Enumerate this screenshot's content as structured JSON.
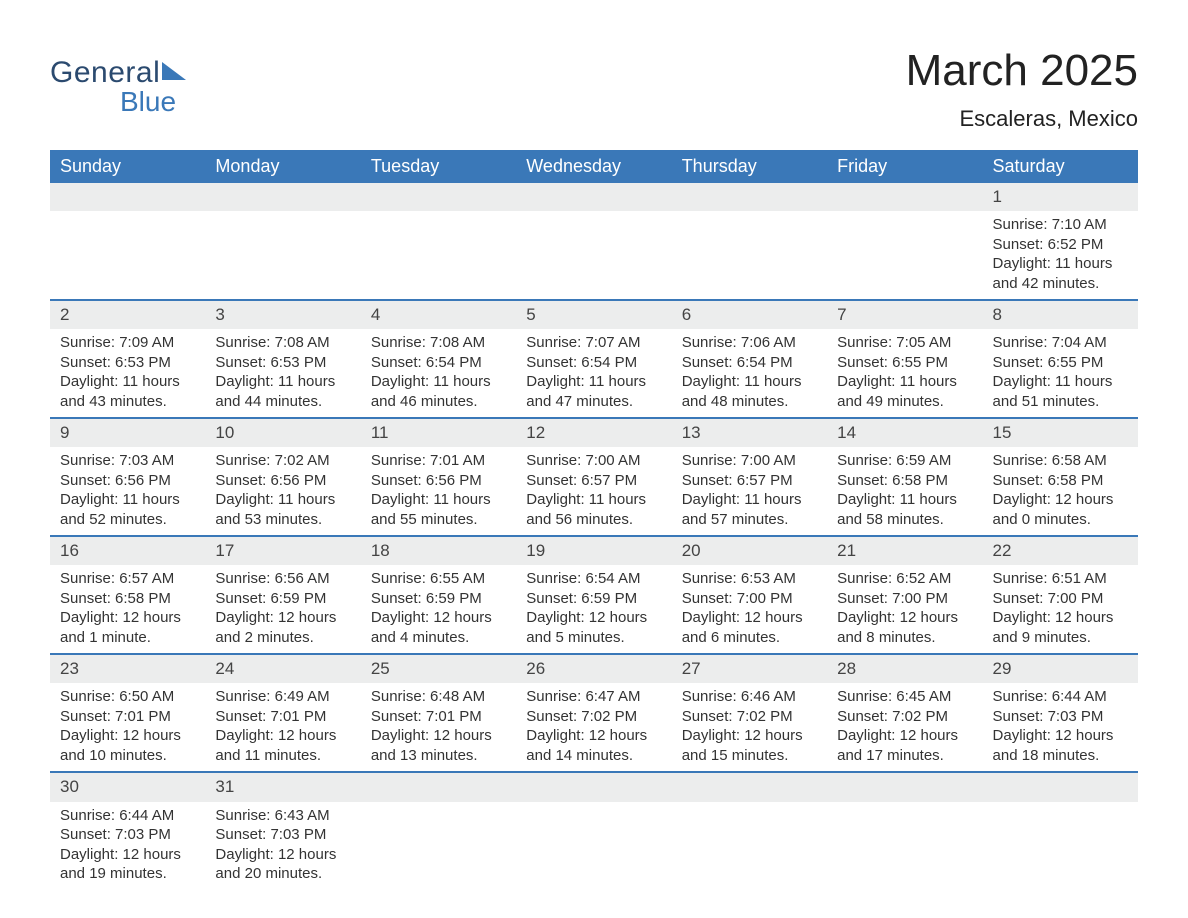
{
  "logo": {
    "general": "General",
    "blue": "Blue"
  },
  "header": {
    "title": "March 2025",
    "location": "Escaleras, Mexico"
  },
  "colors": {
    "header_bg": "#3a78b8",
    "header_text": "#ffffff",
    "daynum_bg": "#eceded",
    "row_border": "#3a78b8",
    "text": "#333333",
    "background": "#ffffff"
  },
  "day_headers": [
    "Sunday",
    "Monday",
    "Tuesday",
    "Wednesday",
    "Thursday",
    "Friday",
    "Saturday"
  ],
  "weeks": [
    [
      null,
      null,
      null,
      null,
      null,
      null,
      {
        "n": "1",
        "sr": "Sunrise: 7:10 AM",
        "ss": "Sunset: 6:52 PM",
        "d1": "Daylight: 11 hours",
        "d2": "and 42 minutes."
      }
    ],
    [
      {
        "n": "2",
        "sr": "Sunrise: 7:09 AM",
        "ss": "Sunset: 6:53 PM",
        "d1": "Daylight: 11 hours",
        "d2": "and 43 minutes."
      },
      {
        "n": "3",
        "sr": "Sunrise: 7:08 AM",
        "ss": "Sunset: 6:53 PM",
        "d1": "Daylight: 11 hours",
        "d2": "and 44 minutes."
      },
      {
        "n": "4",
        "sr": "Sunrise: 7:08 AM",
        "ss": "Sunset: 6:54 PM",
        "d1": "Daylight: 11 hours",
        "d2": "and 46 minutes."
      },
      {
        "n": "5",
        "sr": "Sunrise: 7:07 AM",
        "ss": "Sunset: 6:54 PM",
        "d1": "Daylight: 11 hours",
        "d2": "and 47 minutes."
      },
      {
        "n": "6",
        "sr": "Sunrise: 7:06 AM",
        "ss": "Sunset: 6:54 PM",
        "d1": "Daylight: 11 hours",
        "d2": "and 48 minutes."
      },
      {
        "n": "7",
        "sr": "Sunrise: 7:05 AM",
        "ss": "Sunset: 6:55 PM",
        "d1": "Daylight: 11 hours",
        "d2": "and 49 minutes."
      },
      {
        "n": "8",
        "sr": "Sunrise: 7:04 AM",
        "ss": "Sunset: 6:55 PM",
        "d1": "Daylight: 11 hours",
        "d2": "and 51 minutes."
      }
    ],
    [
      {
        "n": "9",
        "sr": "Sunrise: 7:03 AM",
        "ss": "Sunset: 6:56 PM",
        "d1": "Daylight: 11 hours",
        "d2": "and 52 minutes."
      },
      {
        "n": "10",
        "sr": "Sunrise: 7:02 AM",
        "ss": "Sunset: 6:56 PM",
        "d1": "Daylight: 11 hours",
        "d2": "and 53 minutes."
      },
      {
        "n": "11",
        "sr": "Sunrise: 7:01 AM",
        "ss": "Sunset: 6:56 PM",
        "d1": "Daylight: 11 hours",
        "d2": "and 55 minutes."
      },
      {
        "n": "12",
        "sr": "Sunrise: 7:00 AM",
        "ss": "Sunset: 6:57 PM",
        "d1": "Daylight: 11 hours",
        "d2": "and 56 minutes."
      },
      {
        "n": "13",
        "sr": "Sunrise: 7:00 AM",
        "ss": "Sunset: 6:57 PM",
        "d1": "Daylight: 11 hours",
        "d2": "and 57 minutes."
      },
      {
        "n": "14",
        "sr": "Sunrise: 6:59 AM",
        "ss": "Sunset: 6:58 PM",
        "d1": "Daylight: 11 hours",
        "d2": "and 58 minutes."
      },
      {
        "n": "15",
        "sr": "Sunrise: 6:58 AM",
        "ss": "Sunset: 6:58 PM",
        "d1": "Daylight: 12 hours",
        "d2": "and 0 minutes."
      }
    ],
    [
      {
        "n": "16",
        "sr": "Sunrise: 6:57 AM",
        "ss": "Sunset: 6:58 PM",
        "d1": "Daylight: 12 hours",
        "d2": "and 1 minute."
      },
      {
        "n": "17",
        "sr": "Sunrise: 6:56 AM",
        "ss": "Sunset: 6:59 PM",
        "d1": "Daylight: 12 hours",
        "d2": "and 2 minutes."
      },
      {
        "n": "18",
        "sr": "Sunrise: 6:55 AM",
        "ss": "Sunset: 6:59 PM",
        "d1": "Daylight: 12 hours",
        "d2": "and 4 minutes."
      },
      {
        "n": "19",
        "sr": "Sunrise: 6:54 AM",
        "ss": "Sunset: 6:59 PM",
        "d1": "Daylight: 12 hours",
        "d2": "and 5 minutes."
      },
      {
        "n": "20",
        "sr": "Sunrise: 6:53 AM",
        "ss": "Sunset: 7:00 PM",
        "d1": "Daylight: 12 hours",
        "d2": "and 6 minutes."
      },
      {
        "n": "21",
        "sr": "Sunrise: 6:52 AM",
        "ss": "Sunset: 7:00 PM",
        "d1": "Daylight: 12 hours",
        "d2": "and 8 minutes."
      },
      {
        "n": "22",
        "sr": "Sunrise: 6:51 AM",
        "ss": "Sunset: 7:00 PM",
        "d1": "Daylight: 12 hours",
        "d2": "and 9 minutes."
      }
    ],
    [
      {
        "n": "23",
        "sr": "Sunrise: 6:50 AM",
        "ss": "Sunset: 7:01 PM",
        "d1": "Daylight: 12 hours",
        "d2": "and 10 minutes."
      },
      {
        "n": "24",
        "sr": "Sunrise: 6:49 AM",
        "ss": "Sunset: 7:01 PM",
        "d1": "Daylight: 12 hours",
        "d2": "and 11 minutes."
      },
      {
        "n": "25",
        "sr": "Sunrise: 6:48 AM",
        "ss": "Sunset: 7:01 PM",
        "d1": "Daylight: 12 hours",
        "d2": "and 13 minutes."
      },
      {
        "n": "26",
        "sr": "Sunrise: 6:47 AM",
        "ss": "Sunset: 7:02 PM",
        "d1": "Daylight: 12 hours",
        "d2": "and 14 minutes."
      },
      {
        "n": "27",
        "sr": "Sunrise: 6:46 AM",
        "ss": "Sunset: 7:02 PM",
        "d1": "Daylight: 12 hours",
        "d2": "and 15 minutes."
      },
      {
        "n": "28",
        "sr": "Sunrise: 6:45 AM",
        "ss": "Sunset: 7:02 PM",
        "d1": "Daylight: 12 hours",
        "d2": "and 17 minutes."
      },
      {
        "n": "29",
        "sr": "Sunrise: 6:44 AM",
        "ss": "Sunset: 7:03 PM",
        "d1": "Daylight: 12 hours",
        "d2": "and 18 minutes."
      }
    ],
    [
      {
        "n": "30",
        "sr": "Sunrise: 6:44 AM",
        "ss": "Sunset: 7:03 PM",
        "d1": "Daylight: 12 hours",
        "d2": "and 19 minutes."
      },
      {
        "n": "31",
        "sr": "Sunrise: 6:43 AM",
        "ss": "Sunset: 7:03 PM",
        "d1": "Daylight: 12 hours",
        "d2": "and 20 minutes."
      },
      null,
      null,
      null,
      null,
      null
    ]
  ]
}
